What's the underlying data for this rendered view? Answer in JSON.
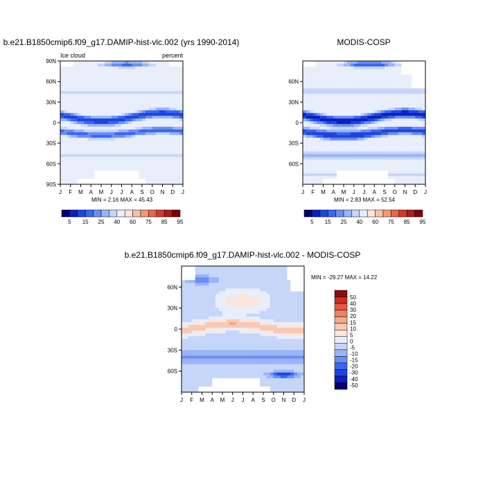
{
  "colors": {
    "abs_levels": [
      "#04006b",
      "#0a20c0",
      "#1c45e0",
      "#3a66f2",
      "#6a8ef5",
      "#9ab4f7",
      "#c6d6f8",
      "#e9eefb",
      "#fce6dc",
      "#f5c0a8",
      "#f09878",
      "#e8674b",
      "#d23b2a",
      "#b01a1a",
      "#800000"
    ],
    "diff_levels": [
      "#04006b",
      "#0a20c0",
      "#1c45e0",
      "#3a66f2",
      "#6a8ef5",
      "#9ab4f7",
      "#c6d6f8",
      "#e9eefb",
      "#fce6dc",
      "#f8c9b4",
      "#f5a88b",
      "#ef8261",
      "#e5573c",
      "#c92e1f",
      "#8f0a0a"
    ],
    "missing": "#ffffff"
  },
  "chart_data": [
    {
      "type": "heatmap",
      "title": "b.e21.B1850cmip6.f09_g17.DAMIP-hist-vlc.002 (yrs 1990-2014)",
      "left_label": "Ice cloud",
      "right_label": "percent",
      "x_ticks": [
        "J",
        "F",
        "M",
        "A",
        "M",
        "J",
        "J",
        "A",
        "S",
        "O",
        "N",
        "D",
        "J"
      ],
      "y_ticks": [
        "90N",
        "60N",
        "30N",
        "0",
        "30S",
        "60S",
        "90S"
      ],
      "ylim": [
        -90,
        90
      ],
      "stats": "MIN =   2.16 MAX =  45.43",
      "min": 2.16,
      "max": 45.43
    },
    {
      "type": "heatmap",
      "title": "MODIS-COSP",
      "x_ticks": [
        "J",
        "F",
        "M",
        "A",
        "M",
        "J",
        "J",
        "A",
        "S",
        "O",
        "N",
        "D",
        "J"
      ],
      "y_ticks": [
        "60N",
        "30N",
        "0",
        "30S",
        "60S"
      ],
      "ylim": [
        -90,
        90
      ],
      "stats": "MIN =   2.83 MAX =  52.54",
      "min": 2.83,
      "max": 52.54
    },
    {
      "type": "heatmap",
      "title": "b.e21.B1850cmip6.f09_g17.DAMIP-hist-vlc.002 - MODIS-COSP",
      "x_ticks": [
        "J",
        "F",
        "M",
        "A",
        "M",
        "J",
        "J",
        "A",
        "S",
        "O",
        "N",
        "D",
        "J"
      ],
      "y_ticks": [
        "60N",
        "30N",
        "0",
        "30S",
        "60S"
      ],
      "ylim": [
        -90,
        90
      ],
      "stats": "MIN = -29.27 MAX =  14.22",
      "min": -29.27,
      "max": 14.22
    }
  ],
  "colorbars": {
    "abs_labels": [
      "5",
      "15",
      "25",
      "40",
      "60",
      "75",
      "85",
      "95"
    ],
    "diff_labels": [
      "50",
      "40",
      "30",
      "20",
      "15",
      "10",
      "5",
      "0",
      "-5",
      "-10",
      "-15",
      "-20",
      "-30",
      "-40",
      "-50"
    ]
  }
}
